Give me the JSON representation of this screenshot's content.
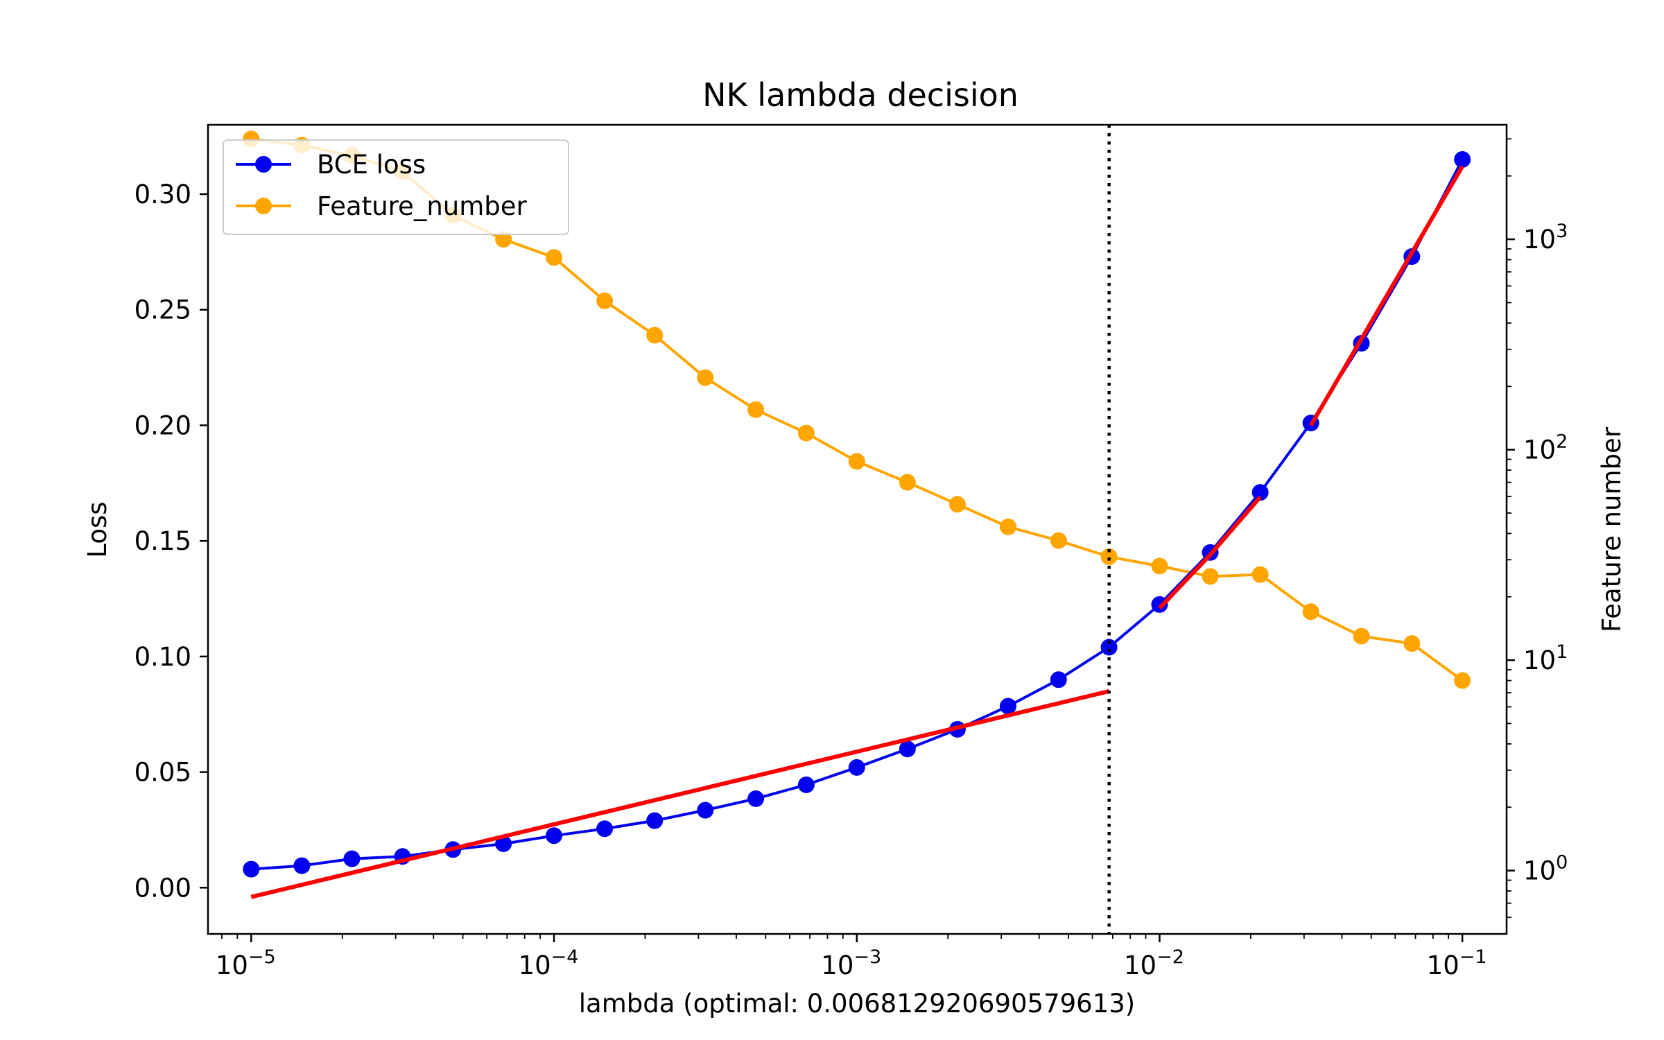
{
  "chart_data": {
    "type": "line",
    "title": "NK lambda decision",
    "xlabel": "lambda (optimal: 0.006812920690579613)",
    "ylabel": "Loss",
    "y2label": "Feature number",
    "xscale": "log",
    "xlim": [
      7.2e-06,
      0.14
    ],
    "ylim": [
      -0.02,
      0.33
    ],
    "y2scale": "log",
    "y2lim": [
      0.5,
      3500
    ],
    "x_ticks": [
      {
        "value": 1e-05,
        "base": "10",
        "exp": "−5"
      },
      {
        "value": 0.0001,
        "base": "10",
        "exp": "−4"
      },
      {
        "value": 0.001,
        "base": "10",
        "exp": "−3"
      },
      {
        "value": 0.01,
        "base": "10",
        "exp": "−2"
      },
      {
        "value": 0.1,
        "base": "10",
        "exp": "−1"
      }
    ],
    "y_ticks": [
      {
        "value": 0.0,
        "label": "0.00"
      },
      {
        "value": 0.05,
        "label": "0.05"
      },
      {
        "value": 0.1,
        "label": "0.10"
      },
      {
        "value": 0.15,
        "label": "0.15"
      },
      {
        "value": 0.2,
        "label": "0.20"
      },
      {
        "value": 0.25,
        "label": "0.25"
      },
      {
        "value": 0.3,
        "label": "0.30"
      }
    ],
    "y2_ticks": [
      {
        "value": 1,
        "base": "10",
        "exp": "0"
      },
      {
        "value": 10,
        "base": "10",
        "exp": "1"
      },
      {
        "value": 100,
        "base": "10",
        "exp": "2"
      },
      {
        "value": 1000,
        "base": "10",
        "exp": "3"
      }
    ],
    "x": [
      1e-05,
      1.47e-05,
      2.15e-05,
      3.16e-05,
      4.64e-05,
      6.81e-05,
      0.0001,
      0.000147,
      0.000215,
      0.000316,
      0.000464,
      0.000681,
      0.001,
      0.00147,
      0.00215,
      0.00316,
      0.00464,
      0.00681,
      0.01,
      0.0147,
      0.0215,
      0.0316,
      0.0464,
      0.0681,
      0.1
    ],
    "series": [
      {
        "name": "BCE loss",
        "axis": "left",
        "color": "#0000ee",
        "values": [
          0.008,
          0.0095,
          0.0125,
          0.0135,
          0.0165,
          0.019,
          0.0225,
          0.0255,
          0.029,
          0.0335,
          0.0385,
          0.0445,
          0.052,
          0.06,
          0.0685,
          0.0785,
          0.09,
          0.104,
          0.1225,
          0.145,
          0.171,
          0.201,
          0.2355,
          0.273,
          0.315
        ]
      },
      {
        "name": "Feature_number",
        "axis": "right",
        "color": "#ffa500",
        "values": [
          3000,
          2800,
          2500,
          2100,
          1300,
          1000,
          820,
          510,
          350,
          220,
          155,
          120,
          88,
          70,
          55,
          43,
          37,
          31,
          28,
          25,
          25.5,
          17,
          13,
          12,
          8
        ]
      }
    ],
    "fit_lines": [
      {
        "x": [
          1e-05,
          0.00681
        ],
        "y": [
          -0.004,
          0.085
        ],
        "color": "#ff0000"
      },
      {
        "x": [
          0.01,
          0.0147,
          0.0215
        ],
        "y": [
          0.121,
          0.144,
          0.169
        ],
        "color": "#ff0000"
      },
      {
        "x": [
          0.0316,
          0.1
        ],
        "y": [
          0.2,
          0.312
        ],
        "color": "#ff0000"
      }
    ],
    "vline": {
      "x": 0.006812920690579613,
      "style": "dotted",
      "color": "#000000"
    },
    "legend": {
      "placement": "top-left",
      "entries": [
        {
          "label": "BCE loss",
          "color": "#0000ee"
        },
        {
          "label": "Feature_number",
          "color": "#ffa500"
        }
      ]
    }
  }
}
